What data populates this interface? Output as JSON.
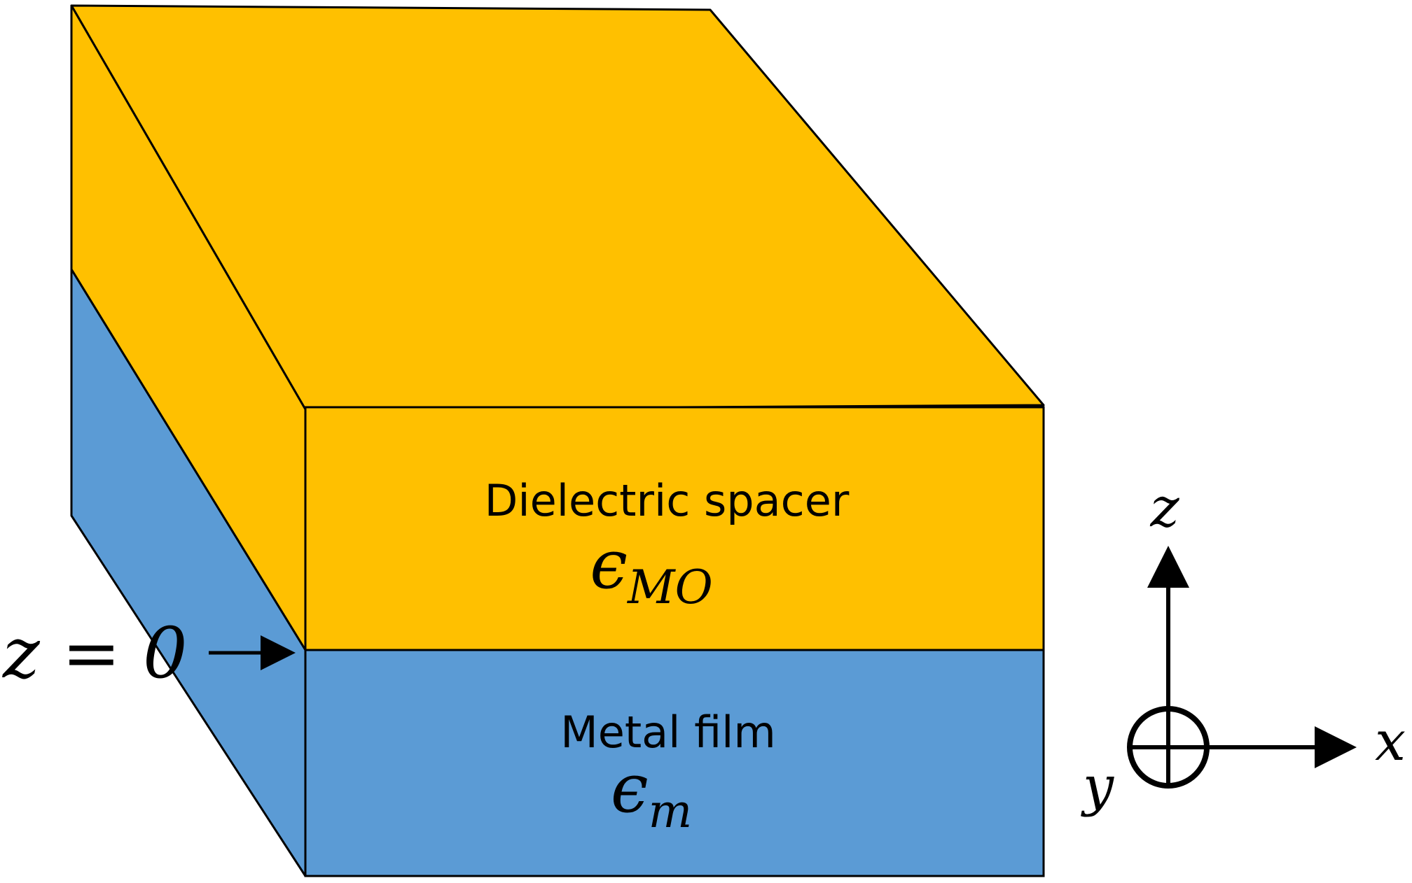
{
  "layers": {
    "dielectric": {
      "name": "Dielectric spacer",
      "symbol": "ϵ",
      "subscript": "MO",
      "color": "#FFC000"
    },
    "metal": {
      "name": "Metal film",
      "symbol": "ϵ",
      "subscript": "m",
      "color": "#5B9BD5"
    }
  },
  "interface_label": "z = 0",
  "axes": {
    "z": "z",
    "x": "x",
    "y": "y"
  },
  "colors": {
    "outline": "#000000",
    "background": "#FFFFFF"
  }
}
